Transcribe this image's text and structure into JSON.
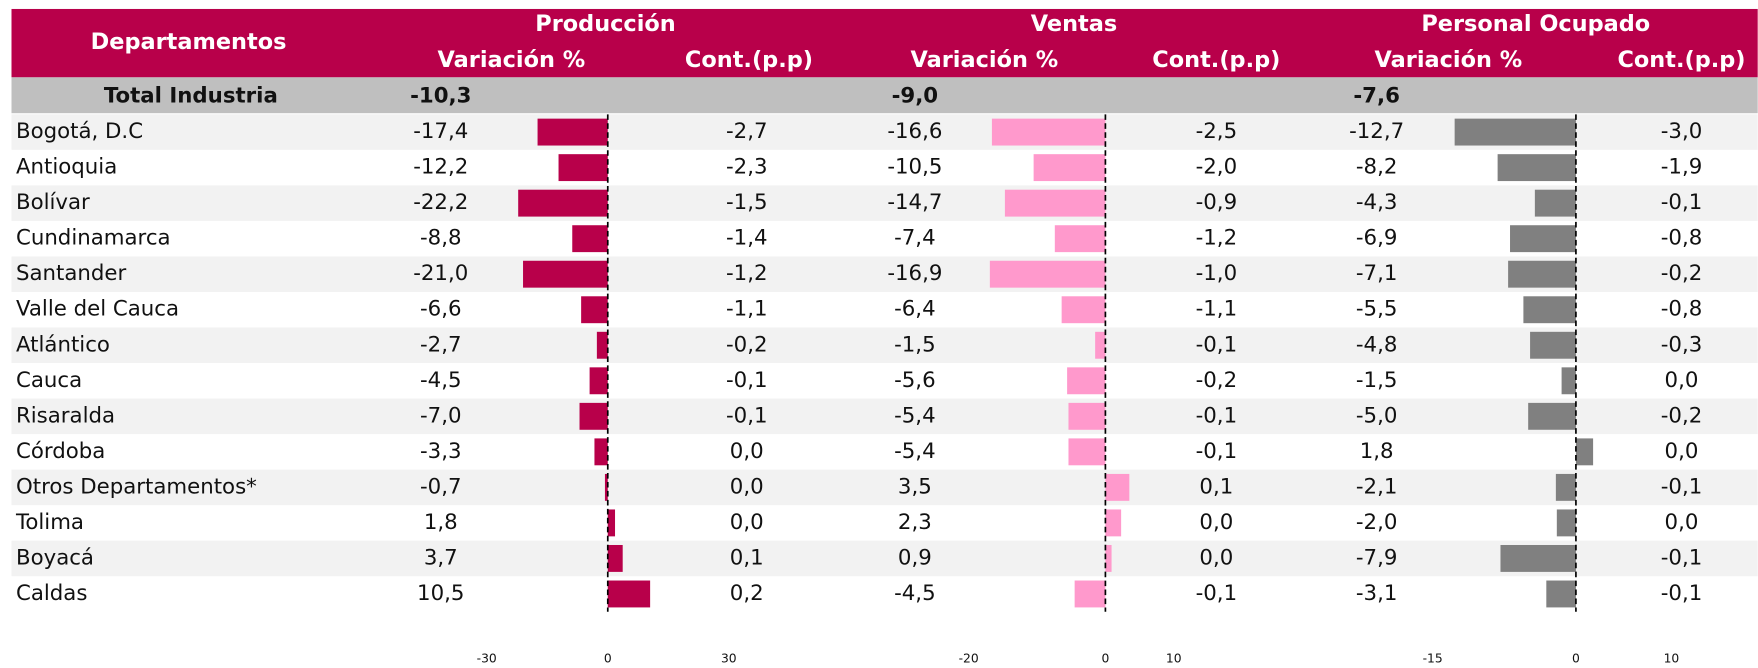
{
  "header": {
    "departments": "Departamentos",
    "variation": "Variación %",
    "contribution": "Cont.(p.p)"
  },
  "total": {
    "label": "Total Industria",
    "values": [
      "-10,3",
      "-9,0",
      "-7,6"
    ]
  },
  "departments": [
    "Bogotá, D.C",
    "Antioquia",
    "Bolívar",
    "Cundinamarca",
    "Santander",
    "Valle del Cauca",
    "Atlántico",
    "Cauca",
    "Risaralda",
    "Córdoba",
    "Otros Departamentos*",
    "Tolima",
    "Boyacá",
    "Caldas"
  ],
  "panels": [
    {
      "title": "Producción",
      "color": "#b8004a",
      "xlim": [
        -30,
        30
      ],
      "xticks": [
        -30,
        0,
        30
      ],
      "values": [
        -17.4,
        -12.2,
        -22.2,
        -8.8,
        -21.0,
        -6.6,
        -2.7,
        -4.5,
        -7.0,
        -3.3,
        -0.7,
        1.8,
        3.7,
        10.5
      ],
      "value_labels": [
        "-17,4",
        "-12,2",
        "-22,2",
        "-8,8",
        "-21,0",
        "-6,6",
        "-2,7",
        "-4,5",
        "-7,0",
        "-3,3",
        "-0,7",
        "1,8",
        "3,7",
        "10,5"
      ],
      "contribution": [
        "-2,7",
        "-2,3",
        "-1,5",
        "-1,4",
        "-1,2",
        "-1,1",
        "-0,2",
        "-0,1",
        "-0,1",
        "0,0",
        "0,0",
        "0,0",
        "0,1",
        "0,2"
      ]
    },
    {
      "title": "Ventas",
      "color": "#ff99cc",
      "xlim": [
        -20,
        10
      ],
      "xticks": [
        -20,
        0,
        10
      ],
      "values": [
        -16.6,
        -10.5,
        -14.7,
        -7.4,
        -16.9,
        -6.4,
        -1.5,
        -5.6,
        -5.4,
        -5.4,
        3.5,
        2.3,
        0.9,
        -4.5
      ],
      "value_labels": [
        "-16,6",
        "-10,5",
        "-14,7",
        "-7,4",
        "-16,9",
        "-6,4",
        "-1,5",
        "-5,6",
        "-5,4",
        "-5,4",
        "3,5",
        "2,3",
        "0,9",
        "-4,5"
      ],
      "contribution": [
        "-2,5",
        "-2,0",
        "-0,9",
        "-1,2",
        "-1,0",
        "-1,1",
        "-0,1",
        "-0,2",
        "-0,1",
        "-0,1",
        "0,1",
        "0,0",
        "0,0",
        "-0,1"
      ]
    },
    {
      "title": "Personal Ocupado",
      "color": "#808080",
      "xlim": [
        -15,
        10
      ],
      "xticks": [
        -15,
        0,
        10
      ],
      "values": [
        -12.7,
        -8.2,
        -4.3,
        -6.9,
        -7.1,
        -5.5,
        -4.8,
        -1.5,
        -5.0,
        1.8,
        -2.1,
        -2.0,
        -7.9,
        -3.1
      ],
      "value_labels": [
        "-12,7",
        "-8,2",
        "-4,3",
        "-6,9",
        "-7,1",
        "-5,5",
        "-4,8",
        "-1,5",
        "-5,0",
        "1,8",
        "-2,1",
        "-2,0",
        "-7,9",
        "-3,1"
      ],
      "contribution": [
        "-3,0",
        "-1,9",
        "-0,1",
        "-0,8",
        "-0,2",
        "-0,8",
        "-0,3",
        "0,0",
        "-0,2",
        "0,0",
        "-0,1",
        "0,0",
        "-0,1",
        "-0,1"
      ]
    }
  ]
}
